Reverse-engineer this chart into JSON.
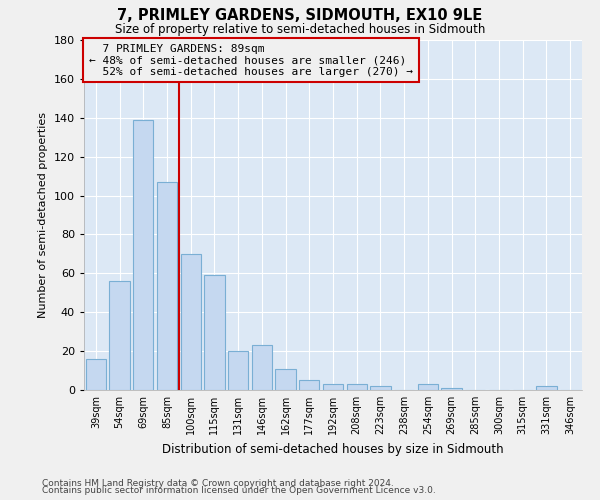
{
  "title": "7, PRIMLEY GARDENS, SIDMOUTH, EX10 9LE",
  "subtitle": "Size of property relative to semi-detached houses in Sidmouth",
  "xlabel": "Distribution of semi-detached houses by size in Sidmouth",
  "ylabel": "Number of semi-detached properties",
  "categories": [
    "39sqm",
    "54sqm",
    "69sqm",
    "85sqm",
    "100sqm",
    "115sqm",
    "131sqm",
    "146sqm",
    "162sqm",
    "177sqm",
    "192sqm",
    "208sqm",
    "223sqm",
    "238sqm",
    "254sqm",
    "269sqm",
    "285sqm",
    "300sqm",
    "315sqm",
    "331sqm",
    "346sqm"
  ],
  "values": [
    16,
    56,
    139,
    107,
    70,
    59,
    20,
    23,
    11,
    5,
    3,
    3,
    2,
    0,
    3,
    1,
    0,
    0,
    0,
    2,
    0
  ],
  "bar_color": "#c5d8f0",
  "bar_edge_color": "#7aafd4",
  "property_label": "7 PRIMLEY GARDENS: 89sqm",
  "pct_smaller": 48,
  "n_smaller": 246,
  "pct_larger": 52,
  "n_larger": 270,
  "vline_x": 3.5,
  "ylim": [
    0,
    180
  ],
  "yticks": [
    0,
    20,
    40,
    60,
    80,
    100,
    120,
    140,
    160,
    180
  ],
  "footnote1": "Contains HM Land Registry data © Crown copyright and database right 2024.",
  "footnote2": "Contains public sector information licensed under the Open Government Licence v3.0.",
  "plot_bg_color": "#dce8f5",
  "fig_bg_color": "#f0f0f0",
  "grid_color": "#ffffff",
  "annotation_box_color": "#cc0000",
  "bar_width": 0.85
}
